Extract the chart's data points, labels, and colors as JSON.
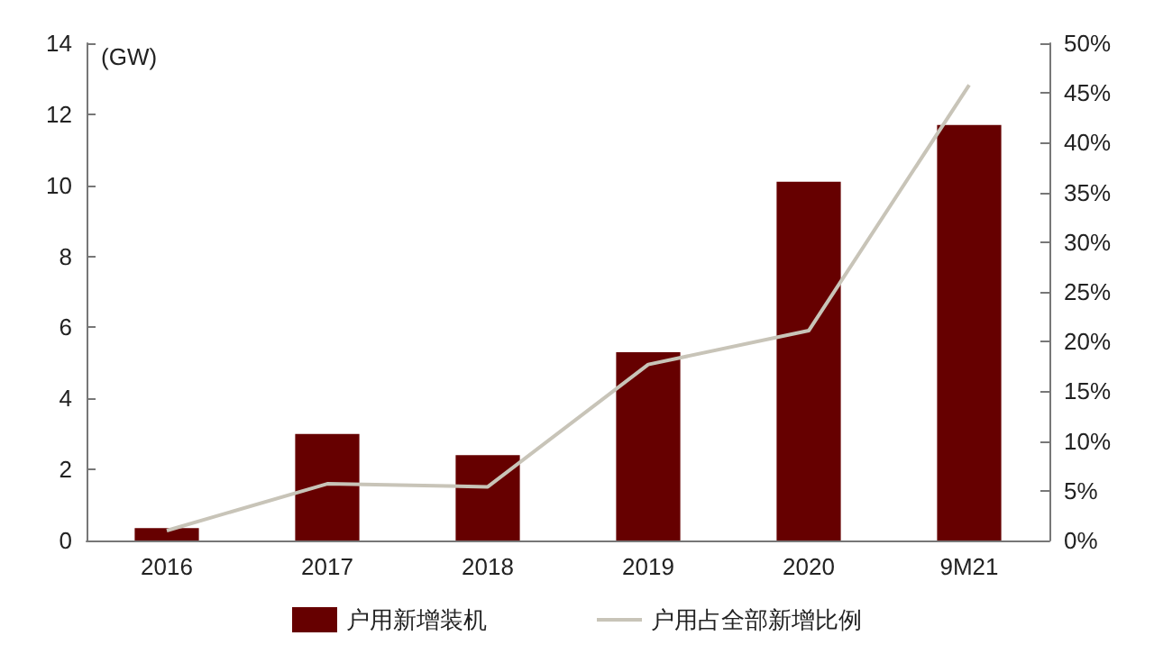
{
  "chart_data": {
    "type": "bar",
    "ylabel": "(GW)",
    "categories": [
      "2016",
      "2017",
      "2018",
      "2019",
      "2020",
      "9M21"
    ],
    "series": [
      {
        "name": "户用新增装机",
        "color": "#660000",
        "values": [
          0.35,
          3.0,
          2.4,
          5.3,
          10.1,
          11.7
        ]
      },
      {
        "name": "户用占全部新增比例",
        "type": "line",
        "axis": "y2",
        "color": "#c8c4b8",
        "values": [
          1.0,
          5.7,
          5.4,
          17.7,
          21.1,
          45.8
        ]
      }
    ],
    "ylim": [
      0,
      14
    ],
    "yticks": [
      0,
      2,
      4,
      6,
      8,
      10,
      12,
      14
    ],
    "y2lim": [
      0,
      50
    ],
    "y2ticks": [
      {
        "value": 0,
        "label": "0%"
      },
      {
        "value": 5,
        "label": "5%"
      },
      {
        "value": 10,
        "label": "10%"
      },
      {
        "value": 15,
        "label": "15%"
      },
      {
        "value": 20,
        "label": "20%"
      },
      {
        "value": 25,
        "label": "25%"
      },
      {
        "value": 30,
        "label": "30%"
      },
      {
        "value": 35,
        "label": "35%"
      },
      {
        "value": 40,
        "label": "40%"
      },
      {
        "value": 45,
        "label": "45%"
      },
      {
        "value": 50,
        "label": "50%"
      }
    ],
    "grid": false,
    "legend": "bottom",
    "marker": "none",
    "line_style": "solid"
  }
}
